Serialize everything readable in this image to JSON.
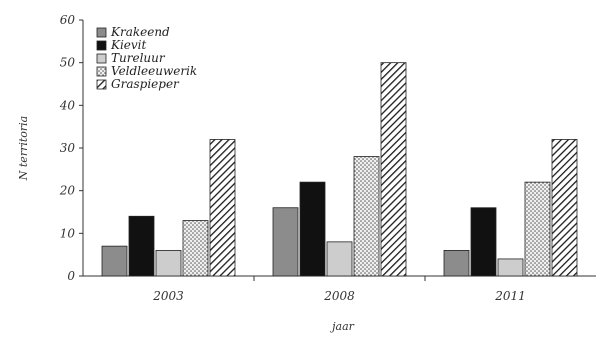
{
  "chart_data": {
    "type": "bar",
    "categories": [
      "2003",
      "2008",
      "2011"
    ],
    "series": [
      {
        "name": "Krakeend",
        "values": [
          7,
          16,
          6
        ],
        "fill": "#8c8c8c",
        "pattern": "solid"
      },
      {
        "name": "Kievit",
        "values": [
          14,
          22,
          16
        ],
        "fill": "#111111",
        "pattern": "solid"
      },
      {
        "name": "Tureluur",
        "values": [
          6,
          8,
          4
        ],
        "fill": "#cdcdcd",
        "pattern": "solid"
      },
      {
        "name": "Veldleeuwerik",
        "values": [
          13,
          28,
          22
        ],
        "fill": "#f2f2f2",
        "pattern": "dots"
      },
      {
        "name": "Graspieper",
        "values": [
          32,
          50,
          32
        ],
        "fill": "#ffffff",
        "pattern": "hatch"
      }
    ],
    "ylabel": "N territoria",
    "xlabel": "jaar",
    "ylim": [
      0,
      60
    ],
    "yticks": [
      0,
      10,
      20,
      30,
      40,
      50,
      60
    ],
    "grid": false,
    "legend": "top-left"
  }
}
